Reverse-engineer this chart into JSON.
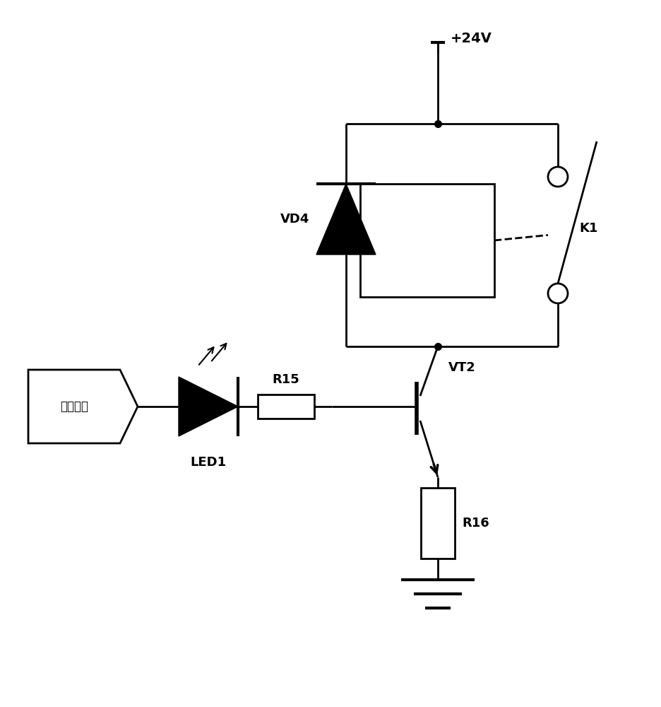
{
  "bg_color": "#ffffff",
  "line_color": "#000000",
  "figsize": [
    9.36,
    10.0
  ],
  "dpi": 100,
  "vcc_label": "+24V",
  "relay_label": "K1",
  "vd4_label": "VD4",
  "r15_label": "R15",
  "r16_label": "R16",
  "led1_label": "LED1",
  "vt2_label": "VT2",
  "micro_label": "微处理器"
}
